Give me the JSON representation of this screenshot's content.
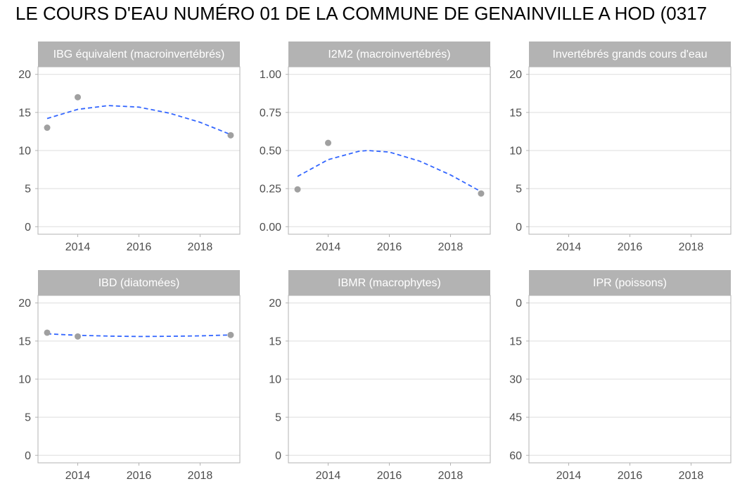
{
  "page": {
    "title": "LE COURS D'EAU NUMÉRO 01 DE LA COMMUNE DE GENAINVILLE A HOD (0317"
  },
  "colors": {
    "point": "#a0a0a0",
    "trend": "#3366ff",
    "strip": "#b3b3b3",
    "strip_text": "#ffffff",
    "grid": "#dedede",
    "border": "#b3b3b3",
    "tick_text": "#4d4d4d"
  },
  "chart_data": [
    {
      "type": "scatter",
      "title": "IBG équivalent (macroinvertébrés)",
      "x_ticks": [
        2014,
        2016,
        2018
      ],
      "y_ticks": [
        0,
        5,
        10,
        15,
        20
      ],
      "ylim": [
        0,
        20
      ],
      "reversed": false,
      "points": [
        {
          "x": 2013,
          "y": 13
        },
        {
          "x": 2014,
          "y": 17
        },
        {
          "x": 2019,
          "y": 12
        }
      ],
      "trend": [
        {
          "x": 2013,
          "y": 14.2
        },
        {
          "x": 2014,
          "y": 15.4
        },
        {
          "x": 2015,
          "y": 15.9
        },
        {
          "x": 2016,
          "y": 15.7
        },
        {
          "x": 2017,
          "y": 14.9
        },
        {
          "x": 2018,
          "y": 13.7
        },
        {
          "x": 2019,
          "y": 12.1
        }
      ]
    },
    {
      "type": "scatter",
      "title": "I2M2 (macroinvertébrés)",
      "x_ticks": [
        2014,
        2016,
        2018
      ],
      "y_ticks": [
        "0.00",
        "0.25",
        "0.50",
        "0.75",
        "1.00"
      ],
      "ylim": [
        0,
        1
      ],
      "reversed": false,
      "points": [
        {
          "x": 2013,
          "y": 0.245
        },
        {
          "x": 2014,
          "y": 0.55
        },
        {
          "x": 2019,
          "y": 0.218
        }
      ],
      "trend": [
        {
          "x": 2013,
          "y": 0.33
        },
        {
          "x": 2014,
          "y": 0.44
        },
        {
          "x": 2015,
          "y": 0.495
        },
        {
          "x": 2015.3,
          "y": 0.5
        },
        {
          "x": 2016,
          "y": 0.49
        },
        {
          "x": 2017,
          "y": 0.43
        },
        {
          "x": 2018,
          "y": 0.34
        },
        {
          "x": 2019,
          "y": 0.23
        }
      ]
    },
    {
      "type": "scatter",
      "title": "Invertébrés grands cours d'eau",
      "x_ticks": [
        2014,
        2016,
        2018
      ],
      "y_ticks": [
        0,
        5,
        10,
        15,
        20
      ],
      "ylim": [
        0,
        20
      ],
      "reversed": false,
      "points": [],
      "trend": []
    },
    {
      "type": "scatter",
      "title": "IBD (diatomées)",
      "x_ticks": [
        2014,
        2016,
        2018
      ],
      "y_ticks": [
        0,
        5,
        10,
        15,
        20
      ],
      "ylim": [
        0,
        20
      ],
      "reversed": false,
      "points": [
        {
          "x": 2013,
          "y": 16.1
        },
        {
          "x": 2014,
          "y": 15.6
        },
        {
          "x": 2019,
          "y": 15.8
        }
      ],
      "trend": [
        {
          "x": 2013,
          "y": 15.95
        },
        {
          "x": 2014,
          "y": 15.75
        },
        {
          "x": 2015,
          "y": 15.65
        },
        {
          "x": 2016,
          "y": 15.6
        },
        {
          "x": 2017,
          "y": 15.62
        },
        {
          "x": 2018,
          "y": 15.68
        },
        {
          "x": 2019,
          "y": 15.8
        }
      ]
    },
    {
      "type": "scatter",
      "title": "IBMR (macrophytes)",
      "x_ticks": [
        2014,
        2016,
        2018
      ],
      "y_ticks": [
        0,
        5,
        10,
        15,
        20
      ],
      "ylim": [
        0,
        20
      ],
      "reversed": false,
      "points": [],
      "trend": []
    },
    {
      "type": "scatter",
      "title": "IPR (poissons)",
      "x_ticks": [
        2014,
        2016,
        2018
      ],
      "y_ticks": [
        0,
        15,
        30,
        45,
        60
      ],
      "ylim": [
        0,
        60
      ],
      "reversed": true,
      "points": [],
      "trend": []
    }
  ]
}
